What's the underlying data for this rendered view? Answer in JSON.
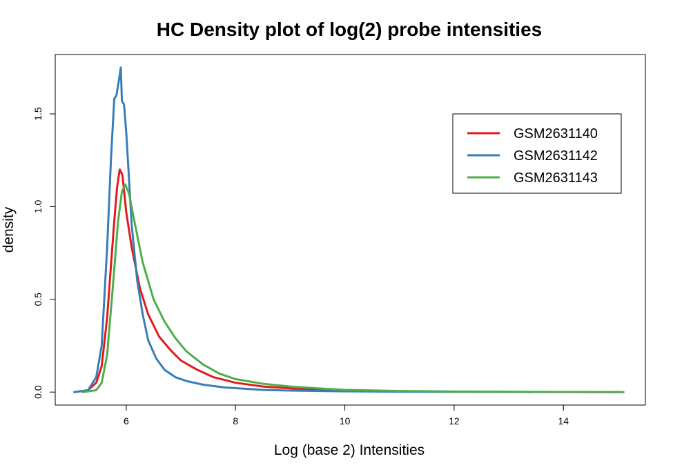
{
  "chart_data": {
    "type": "line",
    "title": "HC Density plot of log(2) probe intensities",
    "xlabel": "Log (base 2) Intensities",
    "ylabel": "density",
    "xlim": [
      4.7,
      15.5
    ],
    "ylim": [
      -0.07,
      1.82
    ],
    "xticks": [
      6,
      8,
      10,
      12,
      14
    ],
    "yticks": [
      0.0,
      0.5,
      1.0,
      1.5
    ],
    "xtick_labels": [
      "6",
      "8",
      "10",
      "12",
      "14"
    ],
    "ytick_labels": [
      "0.0",
      "0.5",
      "1.0",
      "1.5"
    ],
    "grid": false,
    "legend_position": "top-right",
    "series": [
      {
        "name": "GSM2631140",
        "color": "#e31a1c",
        "x": [
          5.05,
          5.3,
          5.45,
          5.55,
          5.65,
          5.72,
          5.78,
          5.83,
          5.88,
          5.93,
          6.0,
          6.1,
          6.25,
          6.4,
          6.6,
          6.8,
          7.0,
          7.3,
          7.6,
          8.0,
          8.5,
          9.0,
          9.5,
          10.0,
          11.0,
          12.0,
          13.0,
          14.0,
          15.05
        ],
        "values": [
          0.0,
          0.01,
          0.05,
          0.14,
          0.4,
          0.68,
          0.92,
          1.1,
          1.2,
          1.17,
          0.97,
          0.78,
          0.56,
          0.42,
          0.3,
          0.23,
          0.17,
          0.12,
          0.08,
          0.05,
          0.03,
          0.02,
          0.012,
          0.008,
          0.004,
          0.002,
          0.001,
          0.0005,
          0.0
        ]
      },
      {
        "name": "GSM2631142",
        "color": "#377eb8",
        "x": [
          5.05,
          5.3,
          5.45,
          5.55,
          5.65,
          5.72,
          5.78,
          5.82,
          5.86,
          5.9,
          5.92,
          5.96,
          6.0,
          6.05,
          6.1,
          6.2,
          6.3,
          6.4,
          6.55,
          6.7,
          6.9,
          7.1,
          7.4,
          7.8,
          8.5,
          9.0,
          10.0,
          11.0,
          12.0,
          13.43
        ],
        "values": [
          0.0,
          0.01,
          0.08,
          0.25,
          0.78,
          1.25,
          1.58,
          1.6,
          1.67,
          1.75,
          1.57,
          1.55,
          1.4,
          1.15,
          0.9,
          0.6,
          0.42,
          0.28,
          0.18,
          0.12,
          0.08,
          0.06,
          0.04,
          0.025,
          0.012,
          0.008,
          0.004,
          0.002,
          0.001,
          0.0
        ]
      },
      {
        "name": "GSM2631143",
        "color": "#4daf4a",
        "x": [
          5.2,
          5.45,
          5.55,
          5.65,
          5.75,
          5.85,
          5.92,
          5.98,
          6.05,
          6.15,
          6.3,
          6.5,
          6.7,
          6.9,
          7.1,
          7.4,
          7.7,
          8.0,
          8.5,
          9.0,
          9.5,
          10.0,
          11.0,
          12.0,
          13.0,
          14.0,
          15.1
        ],
        "values": [
          0.0,
          0.01,
          0.05,
          0.2,
          0.55,
          0.92,
          1.08,
          1.12,
          1.07,
          0.92,
          0.7,
          0.5,
          0.38,
          0.29,
          0.22,
          0.15,
          0.1,
          0.07,
          0.045,
          0.03,
          0.02,
          0.012,
          0.006,
          0.003,
          0.0015,
          0.0008,
          0.0
        ]
      }
    ]
  }
}
